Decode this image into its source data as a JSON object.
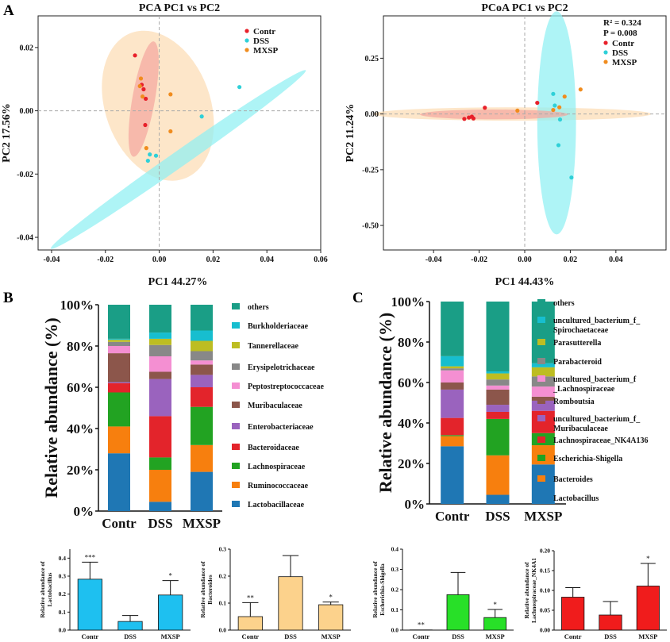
{
  "panel_labels": {
    "a": "A",
    "b": "B",
    "c": "C"
  },
  "colors": {
    "contr": "#e8202a",
    "dss": "#2fd0d8",
    "mxsp": "#f08c1e",
    "contr_ellipse": "#f4a8a0",
    "dss_ellipse": "#8ff0f2",
    "mxsp_ellipse": "#fcdcb4",
    "lightblue_bar": "#1ec0f0",
    "peach_bar": "#fcd28c",
    "green_bar": "#28e028",
    "red_bar": "#f01c1c"
  },
  "chart_data": [
    {
      "id": "pca",
      "type": "scatter",
      "title": "PCA  PC1 vs PC2",
      "xlabel": "PC1  44.27%",
      "ylabel": "PC2  17.56%",
      "xlim": [
        -0.045,
        0.06
      ],
      "ylim": [
        -0.044,
        0.03
      ],
      "xticks": [
        -0.04,
        -0.02,
        0.0,
        0.02,
        0.04,
        0.06
      ],
      "xtick_labels": [
        "-0.04",
        "-0.02",
        "0.00",
        "0.02",
        "0.04",
        "0.06"
      ],
      "yticks": [
        0.02,
        0.0,
        -0.02,
        -0.04
      ],
      "ytick_labels": [
        "0.02",
        "0.00",
        "-0.02",
        "-0.04"
      ],
      "legend": [
        "Contr",
        "DSS",
        "MXSP"
      ],
      "series": [
        {
          "name": "Contr",
          "points": [
            [
              -0.009,
              0.0175
            ],
            [
              -0.0065,
              0.0082
            ],
            [
              -0.0058,
              0.0068
            ],
            [
              -0.005,
              0.0038
            ],
            [
              -0.0052,
              -0.0045
            ]
          ]
        },
        {
          "name": "DSS",
          "points": [
            [
              0.0298,
              0.0075
            ],
            [
              0.0158,
              -0.0018
            ],
            [
              -0.0035,
              -0.0138
            ],
            [
              -0.0012,
              -0.0142
            ],
            [
              -0.0042,
              -0.0158
            ]
          ]
        },
        {
          "name": "MXSP",
          "points": [
            [
              -0.0068,
              0.0102
            ],
            [
              -0.0072,
              0.0078
            ],
            [
              -0.0062,
              0.0045
            ],
            [
              0.0042,
              0.0052
            ],
            [
              0.0042,
              -0.0065
            ],
            [
              -0.0048,
              -0.0118
            ]
          ]
        }
      ],
      "ellipses": [
        {
          "name": "MXSP",
          "center": [
            -0.0005,
            0.0016
          ],
          "rx": 0.0195,
          "ry": 0.0245,
          "angle": -20
        },
        {
          "name": "DSS",
          "center": [
            0.0071,
            -0.0154
          ],
          "rx": 0.0578,
          "ry": 0.0025,
          "angle": -35
        },
        {
          "name": "Contr",
          "center": [
            -0.0058,
            0.0037
          ],
          "rx": 0.0042,
          "ry": 0.0185,
          "angle": 10
        }
      ]
    },
    {
      "id": "pcoa",
      "type": "scatter",
      "title": "PCoA  PC1 vs PC2",
      "xlabel": "PC1  44.43%",
      "ylabel": "PC2 11.24%",
      "xlim": [
        -0.062,
        0.062
      ],
      "ylim": [
        -0.61,
        0.44
      ],
      "xticks": [
        -0.04,
        -0.02,
        0.0,
        0.02,
        0.04
      ],
      "xtick_labels": [
        "-0.04",
        "-0.02",
        "0.00",
        "0.02",
        "0.04"
      ],
      "yticks": [
        0.25,
        0.0,
        -0.25,
        -0.5
      ],
      "ytick_labels": [
        "0.25",
        "0.00",
        "-0.25",
        "-0.50"
      ],
      "stats": [
        "R² = 0.324",
        "P = 0.008"
      ],
      "legend": [
        "Contr",
        "DSS",
        "MXSP"
      ],
      "series": [
        {
          "name": "Contr",
          "points": [
            [
              -0.0265,
              -0.022
            ],
            [
              -0.0245,
              -0.016
            ],
            [
              -0.0232,
              -0.012
            ],
            [
              -0.0225,
              -0.02
            ],
            [
              -0.0175,
              0.028
            ],
            [
              0.0055,
              0.05
            ]
          ]
        },
        {
          "name": "DSS",
          "points": [
            [
              0.0125,
              0.09
            ],
            [
              0.0132,
              0.038
            ],
            [
              0.0155,
              -0.025
            ],
            [
              0.0148,
              -0.14
            ],
            [
              0.0205,
              -0.285
            ]
          ]
        },
        {
          "name": "MXSP",
          "points": [
            [
              -0.0032,
              0.015
            ],
            [
              0.0125,
              0.018
            ],
            [
              0.0175,
              0.078
            ],
            [
              0.0245,
              0.11
            ],
            [
              0.0152,
              0.03
            ]
          ]
        }
      ],
      "ellipses": [
        {
          "name": "MXSP",
          "center": [
            -0.0055,
            0.0
          ],
          "rx": 0.061,
          "ry": 0.03,
          "angle": 0
        },
        {
          "name": "DSS",
          "center": [
            0.014,
            -0.04
          ],
          "rx": 0.0085,
          "ry": 0.5,
          "angle": 0
        },
        {
          "name": "Contr",
          "center": [
            -0.0135,
            -0.002
          ],
          "rx": 0.0325,
          "ry": 0.022,
          "angle": 0
        }
      ]
    },
    {
      "id": "stack-family",
      "type": "bar",
      "stacked": true,
      "ylabel": "Relative abundance (%)",
      "ylim": [
        0,
        100
      ],
      "yticks": [
        0,
        20,
        40,
        60,
        80,
        100
      ],
      "ytick_labels": [
        "0%",
        "20%",
        "40%",
        "60%",
        "80%",
        "100%"
      ],
      "categories": [
        "Contr",
        "DSS",
        "MXSP"
      ],
      "series": [
        {
          "name": "Lactobacillaceae",
          "color": "#1f77b4",
          "values": [
            28,
            4.5,
            19
          ]
        },
        {
          "name": "Ruminococcaceae",
          "color": "#f77f0e",
          "values": [
            13,
            15.5,
            13
          ]
        },
        {
          "name": "Lachnospiraceae",
          "color": "#22a322",
          "values": [
            16.5,
            6,
            18.5
          ]
        },
        {
          "name": "Bacteroidaceae",
          "color": "#e3242b",
          "values": [
            4.5,
            20,
            9.5
          ]
        },
        {
          "name": "Enterobacteriaceae",
          "color": "#9a63be",
          "values": [
            0.5,
            18,
            6
          ]
        },
        {
          "name": "Muribaculaceae",
          "color": "#8c564b",
          "values": [
            14,
            3.5,
            5
          ]
        },
        {
          "name": "Peptostreptococcaceae",
          "color": "#f48fd2",
          "values": [
            3.5,
            7.5,
            2
          ]
        },
        {
          "name": "Erysipelotrichaceae",
          "color": "#888888",
          "values": [
            2,
            5.5,
            4.5
          ]
        },
        {
          "name": "Tannerellaceae",
          "color": "#bdbd22",
          "values": [
            1,
            3,
            5
          ]
        },
        {
          "name": "Burkholderiaceae",
          "color": "#17becf",
          "values": [
            0.5,
            3,
            5
          ]
        },
        {
          "name": "others",
          "color": "#1a9e86",
          "values": [
            16.5,
            13.5,
            12.5
          ]
        }
      ],
      "legend_order": [
        "others",
        "Burkholderiaceae",
        "Tannerellaceae",
        "Erysipelotrichaceae",
        "Peptostreptococcaceae",
        "Muribaculaceae",
        "Enterobacteriaceae",
        "Bacteroidaceae",
        "Lachnospiraceae",
        "Ruminococcaceae",
        "Lactobacillaceae"
      ]
    },
    {
      "id": "stack-genus",
      "type": "bar",
      "stacked": true,
      "ylabel": "Relative abundance (%)",
      "ylim": [
        0,
        100
      ],
      "yticks": [
        0,
        20,
        40,
        60,
        80,
        100
      ],
      "ytick_labels": [
        "0%",
        "20%",
        "40%",
        "60%",
        "80%",
        "100%"
      ],
      "categories": [
        "Contr",
        "DSS",
        "MXSP"
      ],
      "series": [
        {
          "name": "Lactobacillus",
          "color": "#1f77b4",
          "values": [
            28.5,
            4.5,
            19.5
          ]
        },
        {
          "name": "Bacteroides",
          "color": "#f77f0e",
          "values": [
            5,
            19.5,
            9.5
          ]
        },
        {
          "name": "Escherichia-Shigella",
          "color": "#22a322",
          "values": [
            0.5,
            18,
            6
          ]
        },
        {
          "name": "Lachnospiraceae_NK4A136",
          "color": "#e3242b",
          "values": [
            8.5,
            3.5,
            11
          ]
        },
        {
          "name": "uncultured_bacterium_f_\nMuribaculaceae",
          "color": "#9a63be",
          "values": [
            14,
            3.5,
            5
          ]
        },
        {
          "name": "Romboutsia",
          "color": "#8c564b",
          "values": [
            3.5,
            7.5,
            2
          ]
        },
        {
          "name": "uncultured_bacterium_f\n_Lachnospiraceae",
          "color": "#f48fd2",
          "values": [
            6,
            2,
            5
          ]
        },
        {
          "name": "Parabacteroid",
          "color": "#888888",
          "values": [
            1,
            3,
            5
          ]
        },
        {
          "name": "Parasutterella",
          "color": "#bdbd22",
          "values": [
            1,
            3,
            4.5
          ]
        },
        {
          "name": "uncultured_bacterium_f_\nSpirochaetaceae",
          "color": "#17becf",
          "values": [
            5,
            1,
            2
          ]
        },
        {
          "name": "others",
          "color": "#1a9e86",
          "values": [
            27,
            34.5,
            30.5
          ]
        }
      ],
      "legend_order": [
        "others",
        "uncultured_bacterium_f_\nSpirochaetaceae",
        "Parasutterella",
        "Parabacteroid",
        "uncultured_bacterium_f\n_Lachnospiraceae",
        "Romboutsia",
        "uncultured_bacterium_f_\nMuribaculaceae",
        "Lachnospiraceae_NK4A136",
        "Escherichia-Shigella",
        "Bacteroides",
        "Lactobacillus"
      ]
    },
    {
      "id": "bar-lactobacillus",
      "type": "bar",
      "ylabel": "Relative abundance of\nLactobacillus",
      "categories": [
        "Contr",
        "DSS",
        "MXSP"
      ],
      "values": [
        0.283,
        0.048,
        0.195
      ],
      "errors": [
        0.095,
        0.033,
        0.08
      ],
      "significance": [
        "***",
        "",
        "*"
      ],
      "ylim": [
        0,
        0.45
      ],
      "yticks": [
        0.0,
        0.1,
        0.2,
        0.3,
        0.4
      ],
      "ytick_labels": [
        "0.0",
        "0.1",
        "0.2",
        "0.3",
        "0.4"
      ],
      "color": "#1ec0f0"
    },
    {
      "id": "bar-bacteroides",
      "type": "bar",
      "ylabel": "Relative abundance of\nBacteroides",
      "categories": [
        "Contr",
        "DSS",
        "MXSP"
      ],
      "values": [
        0.05,
        0.198,
        0.094
      ],
      "errors": [
        0.052,
        0.078,
        0.01
      ],
      "significance": [
        "**",
        "",
        "*"
      ],
      "ylim": [
        0,
        0.3
      ],
      "yticks": [
        0.0,
        0.1,
        0.2,
        0.3
      ],
      "ytick_labels": [
        "0.0",
        "0.1",
        "0.2",
        "0.3"
      ],
      "color": "#fcd28c"
    },
    {
      "id": "bar-escherichia",
      "type": "bar",
      "ylabel": "Relative abundance of\nEscherichia-Shigella",
      "categories": [
        "Contr",
        "DSS",
        "MXSP"
      ],
      "values": [
        0.001,
        0.175,
        0.062
      ],
      "errors": [
        0.0,
        0.11,
        0.04
      ],
      "significance": [
        "**",
        "",
        "*"
      ],
      "ylim": [
        0,
        0.4
      ],
      "yticks": [
        0.0,
        0.1,
        0.2,
        0.3,
        0.4
      ],
      "ytick_labels": [
        "0.0",
        "0.1",
        "0.2",
        "0.3",
        "0.4"
      ],
      "color": "#28e028"
    },
    {
      "id": "bar-lachnospiraceae",
      "type": "bar",
      "ylabel": "Relative abundance of\nLachnospiraceae_NK4A1",
      "categories": [
        "Contr",
        "DSS",
        "MXSP"
      ],
      "values": [
        0.083,
        0.038,
        0.111
      ],
      "errors": [
        0.024,
        0.034,
        0.057
      ],
      "significance": [
        "",
        "",
        "*"
      ],
      "ylim": [
        0,
        0.2
      ],
      "yticks": [
        0.0,
        0.05,
        0.1,
        0.15,
        0.2
      ],
      "ytick_labels": [
        "0.00",
        "0.05",
        "0.10",
        "0.15",
        "0.20"
      ],
      "color": "#f01c1c"
    }
  ]
}
